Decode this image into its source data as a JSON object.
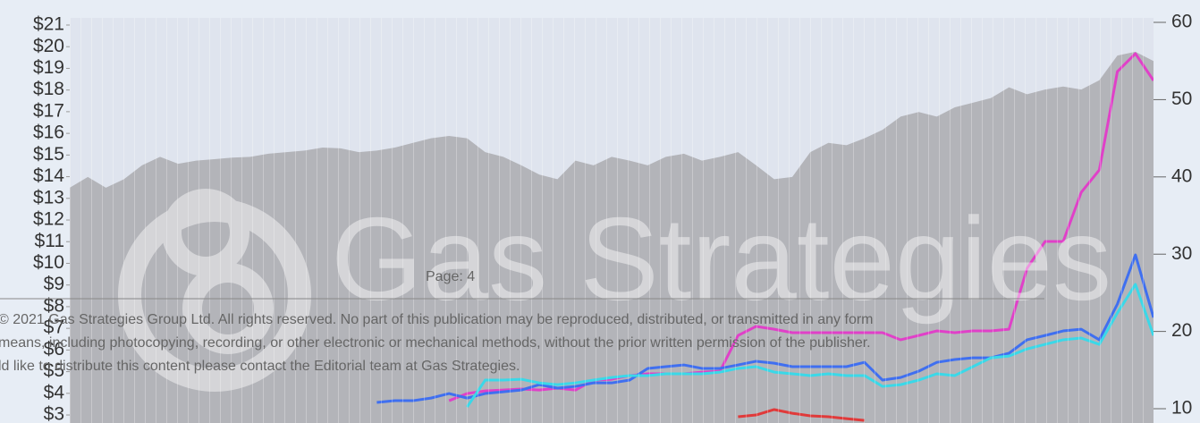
{
  "chart_data": {
    "type": "line",
    "ylim": [
      2.63,
      21.33
    ],
    "yticks": [
      {
        "value": 3,
        "label": "$3"
      },
      {
        "value": 4,
        "label": "$4"
      },
      {
        "value": 5,
        "label": "$5"
      },
      {
        "value": 6,
        "label": "$6"
      },
      {
        "value": 7,
        "label": "$7"
      },
      {
        "value": 8,
        "label": "$8"
      },
      {
        "value": 9,
        "label": "$9"
      },
      {
        "value": 10,
        "label": "$10"
      },
      {
        "value": 11,
        "label": "$11"
      },
      {
        "value": 12,
        "label": "$12"
      },
      {
        "value": 13,
        "label": "$13"
      },
      {
        "value": 14,
        "label": "$14"
      },
      {
        "value": 15,
        "label": "$15"
      },
      {
        "value": 16,
        "label": "$16"
      },
      {
        "value": 17,
        "label": "$17"
      },
      {
        "value": 18,
        "label": "$18"
      },
      {
        "value": 19,
        "label": "$19"
      },
      {
        "value": 20,
        "label": "$20"
      },
      {
        "value": 21,
        "label": "$21"
      }
    ],
    "y2lim": [
      8.15,
      60.58
    ],
    "y2ticks": [
      10,
      20,
      30,
      40,
      50,
      60
    ],
    "series": [
      {
        "color": "#b3b4b9",
        "area": true,
        "axis": "y2",
        "values": [
          38.6,
          40.0,
          38.6,
          39.7,
          41.5,
          42.6,
          41.7,
          42.1,
          42.3,
          42.5,
          42.6,
          43.0,
          43.2,
          43.4,
          43.8,
          43.7,
          43.2,
          43.4,
          43.8,
          44.4,
          45.0,
          45.3,
          45.0,
          43.2,
          42.6,
          41.5,
          40.3,
          39.7,
          42.1,
          41.5,
          42.6,
          42.1,
          41.5,
          42.6,
          43.0,
          42.1,
          42.6,
          43.2,
          41.5,
          39.7,
          40.0,
          43.2,
          44.4,
          44.1,
          45.0,
          46.1,
          47.8,
          48.4,
          47.8,
          49.0,
          49.6,
          50.2,
          51.6,
          50.7,
          51.3,
          51.7,
          51.3,
          52.5,
          55.7,
          56.2,
          55.0
        ]
      },
      {
        "color": "#e040c8",
        "values": [
          null,
          null,
          null,
          null,
          null,
          null,
          null,
          null,
          null,
          null,
          null,
          null,
          null,
          null,
          null,
          null,
          null,
          null,
          null,
          null,
          null,
          3.66,
          3.99,
          4.11,
          4.15,
          4.2,
          4.15,
          4.24,
          4.15,
          4.61,
          4.65,
          4.82,
          4.9,
          4.9,
          4.9,
          4.98,
          5.02,
          6.67,
          7.09,
          6.96,
          6.8,
          6.8,
          6.8,
          6.8,
          6.8,
          6.8,
          6.47,
          6.67,
          6.88,
          6.8,
          6.88,
          6.88,
          6.96,
          9.77,
          11.01,
          11.01,
          13.28,
          14.31,
          18.85,
          19.68,
          18.44
        ]
      },
      {
        "color": "#3f6ff0",
        "values": [
          null,
          null,
          null,
          null,
          null,
          null,
          null,
          null,
          null,
          null,
          null,
          null,
          null,
          null,
          null,
          null,
          null,
          3.58,
          3.66,
          3.66,
          3.78,
          3.99,
          3.78,
          3.99,
          4.07,
          4.15,
          4.4,
          4.24,
          4.32,
          4.48,
          4.48,
          4.61,
          5.15,
          5.23,
          5.31,
          5.15,
          5.15,
          5.31,
          5.48,
          5.39,
          5.23,
          5.23,
          5.23,
          5.23,
          5.43,
          4.61,
          4.73,
          5.02,
          5.43,
          5.56,
          5.64,
          5.64,
          5.85,
          6.47,
          6.67,
          6.88,
          6.96,
          6.47,
          8.12,
          10.39,
          7.5
        ]
      },
      {
        "color": "#3ad8e8",
        "values": [
          null,
          null,
          null,
          null,
          null,
          null,
          null,
          null,
          null,
          null,
          null,
          null,
          null,
          null,
          null,
          null,
          null,
          null,
          null,
          null,
          null,
          null,
          3.37,
          4.61,
          4.61,
          4.65,
          4.48,
          4.4,
          4.48,
          4.61,
          4.73,
          4.82,
          4.82,
          4.9,
          4.9,
          4.9,
          4.98,
          5.15,
          5.23,
          4.98,
          4.9,
          4.82,
          4.9,
          4.82,
          4.82,
          4.32,
          4.4,
          4.61,
          4.9,
          4.82,
          5.23,
          5.64,
          5.72,
          6.05,
          6.26,
          6.47,
          6.55,
          6.26,
          7.71,
          9.03,
          6.67
        ]
      },
      {
        "color": "#e03a3a",
        "values": [
          null,
          null,
          null,
          null,
          null,
          null,
          null,
          null,
          null,
          null,
          null,
          null,
          null,
          null,
          null,
          null,
          null,
          null,
          null,
          null,
          null,
          null,
          null,
          null,
          null,
          null,
          null,
          null,
          null,
          null,
          null,
          null,
          null,
          null,
          null,
          null,
          null,
          2.92,
          3.0,
          3.25,
          3.08,
          2.96,
          2.92,
          2.83,
          2.75,
          null,
          null,
          null,
          null,
          null,
          null,
          null,
          null,
          null,
          null,
          null,
          null,
          null,
          null,
          null,
          null
        ]
      }
    ]
  },
  "watermark": "Gas Strategies",
  "footer": {
    "page": "Page: 4",
    "lines": [
      "© 2021 Gas Strategies Group Ltd. All rights reserved. No part of this publication may be reproduced, distributed, or transmitted in any form",
      "means, including photocopying, recording, or other electronic or mechanical methods, without the prior written permission of the publisher.",
      "ld like to distribute this content please contact the Editorial team at Gas Strategies."
    ]
  }
}
